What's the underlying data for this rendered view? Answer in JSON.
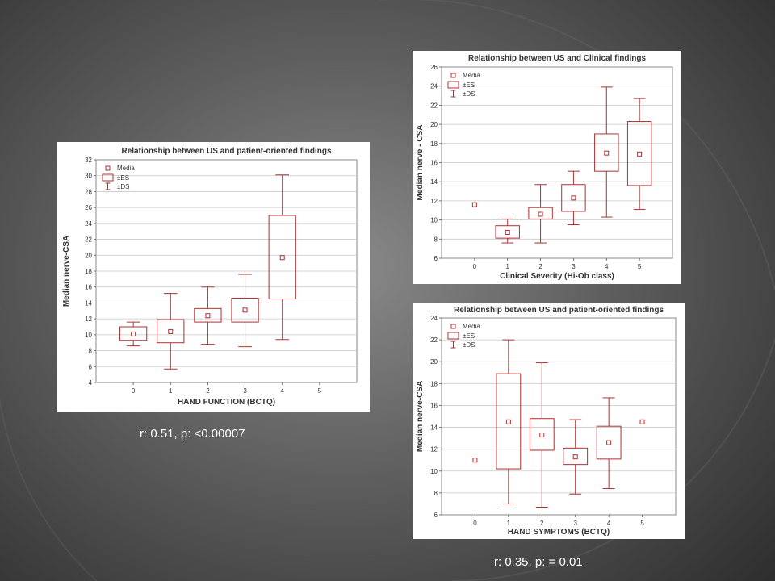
{
  "slide": {
    "caption_left": "r: 0.51, p: <0.00007",
    "caption_right": "r: 0.35, p: = 0.01"
  },
  "colors": {
    "box_stroke": "#b03030",
    "grid": "#c8c8c8",
    "plot_border": "#888888"
  },
  "chart_data": [
    {
      "id": "hand-function",
      "type": "box",
      "title": "Relationship between US and patient-oriented findings",
      "xlabel": "HAND FUNCTION (BCTQ)",
      "ylabel": "Median nerve-CSA",
      "ylim": [
        4,
        32
      ],
      "yticks": [
        4,
        6,
        8,
        10,
        12,
        14,
        16,
        18,
        20,
        22,
        24,
        26,
        28,
        30,
        32
      ],
      "xticks": [
        0,
        1,
        2,
        3,
        4,
        5
      ],
      "xlim": [
        -1,
        6
      ],
      "legend": [
        "Media",
        "±ES",
        "±DS"
      ],
      "legend_position": "top-left",
      "grid": true,
      "groups": [
        {
          "x": 0,
          "mean": 10.1,
          "es": [
            9.3,
            11.0
          ],
          "ds": [
            8.6,
            11.6
          ]
        },
        {
          "x": 1,
          "mean": 10.4,
          "es": [
            9.0,
            11.9
          ],
          "ds": [
            5.7,
            15.2
          ]
        },
        {
          "x": 2,
          "mean": 12.4,
          "es": [
            11.6,
            13.3
          ],
          "ds": [
            8.8,
            16.0
          ]
        },
        {
          "x": 3,
          "mean": 13.1,
          "es": [
            11.6,
            14.6
          ],
          "ds": [
            8.5,
            17.6
          ]
        },
        {
          "x": 4,
          "mean": 19.7,
          "es": [
            14.5,
            25.0
          ],
          "ds": [
            9.4,
            30.1
          ]
        }
      ]
    },
    {
      "id": "clinical-severity",
      "type": "box",
      "title": "Relationship between US and Clinical findings",
      "xlabel": "Clinical Severity (Hi-Ob class)",
      "ylabel": "Median nerve - CSA",
      "ylim": [
        6,
        26
      ],
      "yticks": [
        6,
        8,
        10,
        12,
        14,
        16,
        18,
        20,
        22,
        24,
        26
      ],
      "xticks": [
        0,
        1,
        2,
        3,
        4,
        5
      ],
      "xlim": [
        -1,
        6
      ],
      "legend": [
        "Media",
        "±ES",
        "±DS"
      ],
      "legend_position": "top-left",
      "grid": true,
      "groups": [
        {
          "x": 0,
          "mean": 11.6
        },
        {
          "x": 1,
          "mean": 8.7,
          "es": [
            8.1,
            9.4
          ],
          "ds": [
            7.6,
            10.1
          ]
        },
        {
          "x": 2,
          "mean": 10.6,
          "es": [
            10.1,
            11.3
          ],
          "ds": [
            7.6,
            13.7
          ]
        },
        {
          "x": 3,
          "mean": 12.3,
          "es": [
            10.9,
            13.7
          ],
          "ds": [
            9.5,
            15.1
          ]
        },
        {
          "x": 4,
          "mean": 17.0,
          "es": [
            15.1,
            19.0
          ],
          "ds": [
            10.3,
            23.9
          ]
        },
        {
          "x": 5,
          "mean": 16.9,
          "es": [
            13.6,
            20.3
          ],
          "ds": [
            11.1,
            22.7
          ]
        }
      ]
    },
    {
      "id": "hand-symptoms",
      "type": "box",
      "title": "Relationship between US and patient-oriented findings",
      "xlabel": "HAND SYMPTOMS (BCTQ)",
      "ylabel": "Median nerve-CSA",
      "ylim": [
        6,
        24
      ],
      "yticks": [
        6,
        8,
        10,
        12,
        14,
        16,
        18,
        20,
        22,
        24
      ],
      "xticks": [
        0,
        1,
        2,
        3,
        4,
        5
      ],
      "xlim": [
        -1,
        6
      ],
      "legend": [
        "Media",
        "±ES",
        "±DS"
      ],
      "legend_position": "top-left",
      "grid": true,
      "groups": [
        {
          "x": 0,
          "mean": 11.0
        },
        {
          "x": 1,
          "mean": 14.5,
          "es": [
            10.2,
            18.9
          ],
          "ds": [
            7.0,
            22.0
          ]
        },
        {
          "x": 2,
          "mean": 13.3,
          "es": [
            11.9,
            14.8
          ],
          "ds": [
            6.7,
            19.9
          ]
        },
        {
          "x": 3,
          "mean": 11.3,
          "es": [
            10.6,
            12.1
          ],
          "ds": [
            7.9,
            14.7
          ]
        },
        {
          "x": 4,
          "mean": 12.6,
          "es": [
            11.1,
            14.1
          ],
          "ds": [
            8.4,
            16.7
          ]
        },
        {
          "x": 5,
          "mean": 14.5
        }
      ]
    }
  ]
}
